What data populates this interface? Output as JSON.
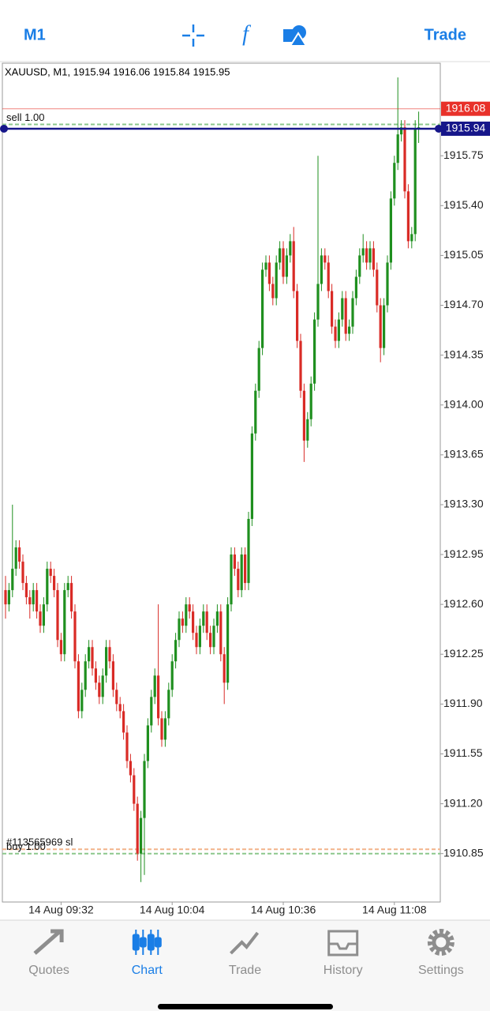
{
  "toolbar": {
    "timeframe": "M1",
    "trade": "Trade"
  },
  "chart_data": {
    "type": "candlestick",
    "title": "XAUUSD, M1, 1915.94 1916.06 1915.84 1915.95",
    "up_color": "#1f8f1f",
    "down_color": "#d92b26",
    "grid": false,
    "ylim": [
      1910.51,
      1916.4
    ],
    "yticks": [
      1915.75,
      {
        "value": 1915.4,
        "label": "1915.40"
      },
      1915.05,
      {
        "value": 1914.7,
        "label": "1914.70"
      },
      1914.35,
      {
        "value": 1914.0,
        "label": "1914.00"
      },
      1913.65,
      {
        "value": 1913.3,
        "label": "1913.30"
      },
      1912.95,
      {
        "value": 1912.6,
        "label": "1912.60"
      },
      1912.25,
      {
        "value": 1911.9,
        "label": "1911.90"
      },
      1911.55,
      {
        "value": 1911.2,
        "label": "1911.20"
      },
      1910.85
    ],
    "categories": [
      null,
      null,
      null,
      null,
      null,
      null,
      null,
      null,
      null,
      null,
      null,
      null,
      null,
      null,
      null,
      null,
      "14 Aug 09:32",
      null,
      null,
      null,
      null,
      null,
      null,
      null,
      null,
      null,
      null,
      null,
      null,
      null,
      null,
      null,
      null,
      null,
      null,
      null,
      null,
      null,
      null,
      null,
      null,
      null,
      null,
      null,
      null,
      null,
      null,
      null,
      "14 Aug 10:04",
      null,
      null,
      null,
      null,
      null,
      null,
      null,
      null,
      null,
      null,
      null,
      null,
      null,
      null,
      null,
      null,
      null,
      null,
      null,
      null,
      null,
      null,
      null,
      null,
      null,
      null,
      null,
      null,
      null,
      null,
      null,
      "14 Aug 10:36",
      null,
      null,
      null,
      null,
      null,
      null,
      null,
      null,
      null,
      null,
      null,
      null,
      null,
      null,
      null,
      null,
      null,
      null,
      null,
      null,
      null,
      null,
      null,
      null,
      null,
      null,
      null,
      null,
      null,
      null,
      null,
      "14 Aug 11:08",
      null,
      null,
      null,
      null,
      null,
      null,
      null
    ],
    "open": [
      1912.7,
      1912.6,
      1912.7,
      1912.85,
      1913.0,
      1912.9,
      1912.75,
      1912.65,
      1912.6,
      1912.7,
      1912.55,
      1912.45,
      1912.6,
      1912.85,
      1912.8,
      1912.7,
      1912.35,
      1912.25,
      1912.7,
      1912.75,
      1912.55,
      1912.2,
      1911.85,
      1912.0,
      1912.2,
      1912.3,
      1912.15,
      1912.05,
      1911.95,
      1912.1,
      1912.3,
      1912.2,
      1912.0,
      1911.9,
      1911.85,
      1911.7,
      1911.5,
      1911.4,
      1911.2,
      1910.85,
      1911.1,
      1911.5,
      1911.75,
      1911.95,
      1912.1,
      1911.8,
      1911.65,
      1911.8,
      1912.0,
      1912.2,
      1912.35,
      1912.5,
      1912.45,
      1912.6,
      1912.55,
      1912.4,
      1912.3,
      1912.45,
      1912.55,
      1912.4,
      1912.3,
      1912.45,
      1912.55,
      1912.25,
      1912.05,
      1912.6,
      1912.95,
      1912.85,
      1912.7,
      1912.95,
      1912.75,
      1913.2,
      1913.8,
      1914.1,
      1914.4,
      1914.95,
      1915.0,
      1914.85,
      1914.75,
      1915.0,
      1915.1,
      1914.9,
      1915.05,
      1915.15,
      1914.8,
      1914.45,
      1914.1,
      1913.75,
      1913.9,
      1914.15,
      1914.6,
      1914.85,
      1915.05,
      1915.0,
      1914.8,
      1914.55,
      1914.45,
      1914.6,
      1914.75,
      1914.5,
      1914.55,
      1914.75,
      1914.9,
      1915.05,
      1915.1,
      1915.0,
      1915.1,
      1914.95,
      1914.7,
      1914.4,
      1914.7,
      1915.0,
      1915.45,
      1915.7,
      1915.9,
      1915.95,
      1915.5,
      1915.15,
      1915.2,
      1915.94
    ],
    "high": [
      1912.8,
      1912.75,
      1913.3,
      1913.05,
      1913.05,
      1912.95,
      1912.8,
      1912.7,
      1912.75,
      1912.75,
      1912.6,
      1912.65,
      1912.9,
      1912.9,
      1912.85,
      1912.75,
      1912.4,
      1912.75,
      1912.8,
      1912.8,
      1912.6,
      1912.25,
      1912.05,
      1912.25,
      1912.35,
      1912.35,
      1912.2,
      1912.1,
      1912.15,
      1912.35,
      1912.35,
      1912.25,
      1912.05,
      1911.95,
      1911.9,
      1911.75,
      1911.55,
      1911.45,
      1911.25,
      1911.15,
      1911.55,
      1911.8,
      1912.0,
      1912.15,
      1912.6,
      1911.85,
      1911.85,
      1912.05,
      1912.25,
      1912.4,
      1912.55,
      1912.55,
      1912.65,
      1912.65,
      1912.6,
      1912.45,
      1912.5,
      1912.6,
      1912.6,
      1912.45,
      1912.5,
      1912.6,
      1912.6,
      1912.3,
      1912.65,
      1913.0,
      1913.0,
      1912.9,
      1913.0,
      1913.0,
      1913.25,
      1913.85,
      1914.15,
      1914.45,
      1915.0,
      1915.05,
      1915.05,
      1914.9,
      1915.05,
      1915.15,
      1915.15,
      1915.1,
      1915.2,
      1915.25,
      1914.85,
      1914.5,
      1914.15,
      1913.95,
      1914.2,
      1914.65,
      1915.75,
      1915.1,
      1915.1,
      1915.05,
      1914.85,
      1914.6,
      1914.65,
      1914.8,
      1914.8,
      1914.6,
      1914.8,
      1914.95,
      1915.1,
      1915.2,
      1915.15,
      1915.15,
      1915.15,
      1915.0,
      1914.75,
      1914.75,
      1915.05,
      1915.5,
      1915.75,
      1916.3,
      1916.0,
      1916.0,
      1915.55,
      1915.25,
      1916.0,
      1916.06
    ],
    "low": [
      1912.5,
      1912.55,
      1912.65,
      1912.8,
      1912.85,
      1912.7,
      1912.6,
      1912.5,
      1912.55,
      1912.5,
      1912.4,
      1912.4,
      1912.55,
      1912.75,
      1912.65,
      1912.3,
      1912.2,
      1912.2,
      1912.65,
      1912.5,
      1912.15,
      1911.8,
      1911.8,
      1911.95,
      1912.15,
      1912.1,
      1912.0,
      1911.9,
      1911.9,
      1912.05,
      1912.15,
      1911.95,
      1911.85,
      1911.8,
      1911.65,
      1911.45,
      1911.35,
      1911.15,
      1910.8,
      1910.65,
      1910.7,
      1911.45,
      1911.7,
      1911.9,
      1911.75,
      1911.6,
      1911.6,
      1911.75,
      1911.95,
      1912.15,
      1912.3,
      1912.4,
      1912.4,
      1912.5,
      1912.35,
      1912.25,
      1912.25,
      1912.4,
      1912.35,
      1912.25,
      1912.25,
      1912.4,
      1912.2,
      1911.9,
      1912.0,
      1912.55,
      1912.8,
      1912.65,
      1912.65,
      1912.7,
      1912.7,
      1913.15,
      1913.75,
      1914.05,
      1914.35,
      1914.9,
      1914.8,
      1914.7,
      1914.7,
      1914.95,
      1914.85,
      1914.85,
      1915.0,
      1914.75,
      1914.4,
      1914.05,
      1913.6,
      1913.7,
      1913.85,
      1914.1,
      1914.55,
      1914.8,
      1914.95,
      1914.75,
      1914.5,
      1914.4,
      1914.4,
      1914.55,
      1914.45,
      1914.45,
      1914.5,
      1914.7,
      1914.85,
      1915.0,
      1914.95,
      1914.95,
      1914.9,
      1914.65,
      1914.3,
      1914.35,
      1914.65,
      1914.95,
      1915.4,
      1915.65,
      1915.85,
      1915.45,
      1915.1,
      1915.1,
      1915.15,
      1915.84
    ],
    "close": [
      1912.6,
      1912.7,
      1912.85,
      1913.0,
      1912.9,
      1912.75,
      1912.65,
      1912.6,
      1912.7,
      1912.55,
      1912.45,
      1912.6,
      1912.85,
      1912.8,
      1912.7,
      1912.35,
      1912.25,
      1912.7,
      1912.75,
      1912.55,
      1912.2,
      1911.85,
      1912.0,
      1912.2,
      1912.3,
      1912.15,
      1912.05,
      1911.95,
      1912.1,
      1912.3,
      1912.2,
      1912.0,
      1911.9,
      1911.85,
      1911.7,
      1911.5,
      1911.4,
      1911.2,
      1910.85,
      1911.1,
      1911.5,
      1911.75,
      1911.95,
      1912.1,
      1911.8,
      1911.65,
      1911.8,
      1912.0,
      1912.2,
      1912.35,
      1912.5,
      1912.45,
      1912.6,
      1912.55,
      1912.4,
      1912.3,
      1912.45,
      1912.55,
      1912.4,
      1912.3,
      1912.45,
      1912.55,
      1912.25,
      1912.05,
      1912.6,
      1912.95,
      1912.85,
      1912.7,
      1912.95,
      1912.75,
      1913.2,
      1913.8,
      1914.1,
      1914.4,
      1914.95,
      1915.0,
      1914.85,
      1914.75,
      1915.0,
      1915.1,
      1914.9,
      1915.05,
      1915.15,
      1914.8,
      1914.45,
      1914.1,
      1913.75,
      1913.9,
      1914.15,
      1914.6,
      1914.85,
      1915.05,
      1915.0,
      1914.8,
      1914.55,
      1914.45,
      1914.6,
      1914.75,
      1914.5,
      1914.55,
      1914.75,
      1914.9,
      1915.05,
      1915.1,
      1915.0,
      1915.1,
      1914.95,
      1914.7,
      1914.4,
      1914.7,
      1915.0,
      1915.45,
      1915.7,
      1915.9,
      1915.95,
      1915.5,
      1915.15,
      1915.2,
      1915.94,
      1915.95
    ],
    "price_lines": [
      {
        "value": 1916.08,
        "color": "#e8312a"
      },
      {
        "value": 1915.94,
        "color": "#16168a"
      }
    ],
    "levels": [
      {
        "label": "sell 1.00",
        "value": 1915.97,
        "color": "#8cc78c"
      },
      {
        "label": "#113565969 sl",
        "value": 1910.88,
        "color": "#f2b38a"
      },
      {
        "label": "buy 1.00",
        "value": 1910.85,
        "color": "#8cc78c"
      }
    ]
  },
  "tabs": [
    {
      "label": "Quotes",
      "active": false
    },
    {
      "label": "Chart",
      "active": true
    },
    {
      "label": "Trade",
      "active": false
    },
    {
      "label": "History",
      "active": false
    },
    {
      "label": "Settings",
      "active": false
    }
  ]
}
